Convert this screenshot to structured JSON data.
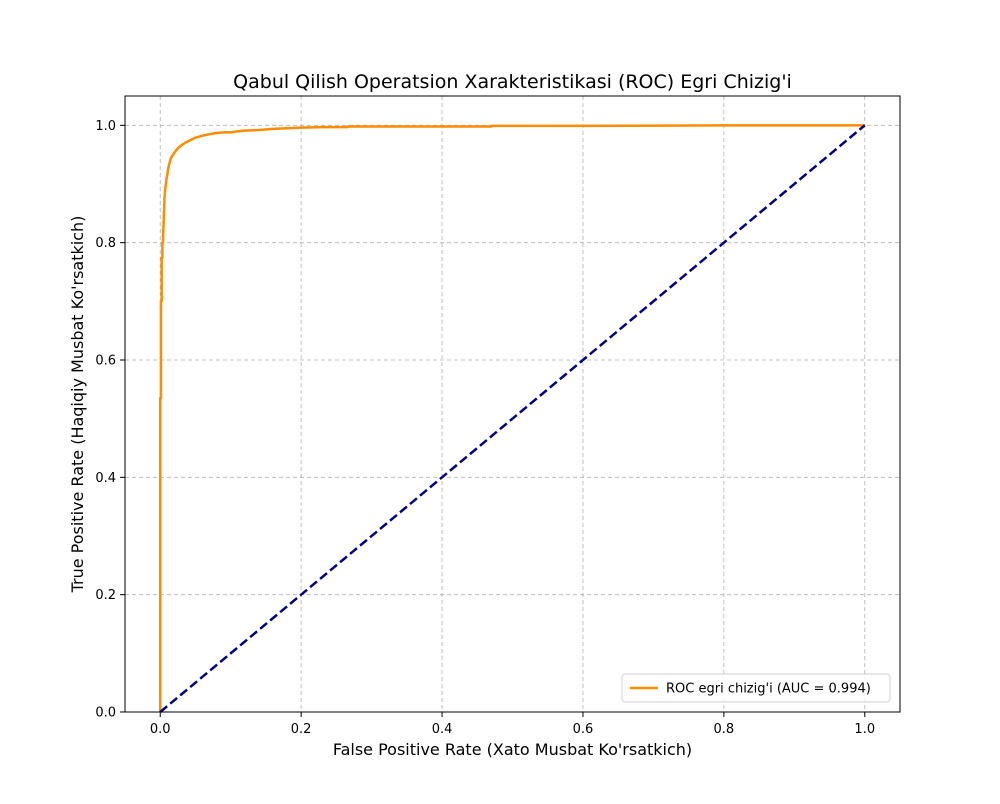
{
  "chart_data": {
    "type": "line",
    "title": "Qabul Qilish Operatsion Xarakteristikasi (ROC) Egri Chizig'i",
    "xlabel": "False Positive Rate (Xato Musbat Ko'rsatkich)",
    "ylabel": "True Positive Rate (Haqiqiy Musbat Ko'rsatkich)",
    "xlim": [
      -0.05,
      1.05
    ],
    "ylim": [
      0.0,
      1.05
    ],
    "xticks": [
      "0.0",
      "0.2",
      "0.4",
      "0.6",
      "0.8",
      "1.0"
    ],
    "yticks": [
      "0.0",
      "0.2",
      "0.4",
      "0.6",
      "0.8",
      "1.0"
    ],
    "grid": true,
    "legend_position": "lower-right",
    "series": [
      {
        "name": "ROC egri chizig'i (AUC = 0.994)",
        "color": "#ff8c00",
        "style": "solid",
        "x": [
          0.0,
          0.0,
          0.001,
          0.001,
          0.002,
          0.002,
          0.003,
          0.003,
          0.004,
          0.004,
          0.005,
          0.006,
          0.007,
          0.008,
          0.009,
          0.01,
          0.011,
          0.013,
          0.015,
          0.017,
          0.02,
          0.023,
          0.026,
          0.03,
          0.035,
          0.04,
          0.045,
          0.05,
          0.056,
          0.062,
          0.07,
          0.08,
          0.09,
          0.1,
          0.11,
          0.12,
          0.14,
          0.16,
          0.18,
          0.2,
          0.23,
          0.266,
          0.266,
          0.35,
          0.47,
          0.47,
          0.6,
          0.8,
          1.0
        ],
        "y": [
          0.0,
          0.535,
          0.535,
          0.7,
          0.7,
          0.775,
          0.775,
          0.8,
          0.8,
          0.81,
          0.84,
          0.875,
          0.89,
          0.9,
          0.91,
          0.915,
          0.925,
          0.935,
          0.944,
          0.948,
          0.953,
          0.958,
          0.962,
          0.966,
          0.97,
          0.973,
          0.976,
          0.979,
          0.981,
          0.983,
          0.985,
          0.987,
          0.988,
          0.988,
          0.99,
          0.991,
          0.992,
          0.994,
          0.995,
          0.996,
          0.997,
          0.997,
          0.998,
          0.998,
          0.998,
          0.999,
          0.999,
          1.0,
          1.0
        ]
      },
      {
        "name": "",
        "color": "#000080",
        "style": "dashed",
        "x": [
          0.0,
          1.0
        ],
        "y": [
          0.0,
          1.0
        ]
      }
    ]
  }
}
